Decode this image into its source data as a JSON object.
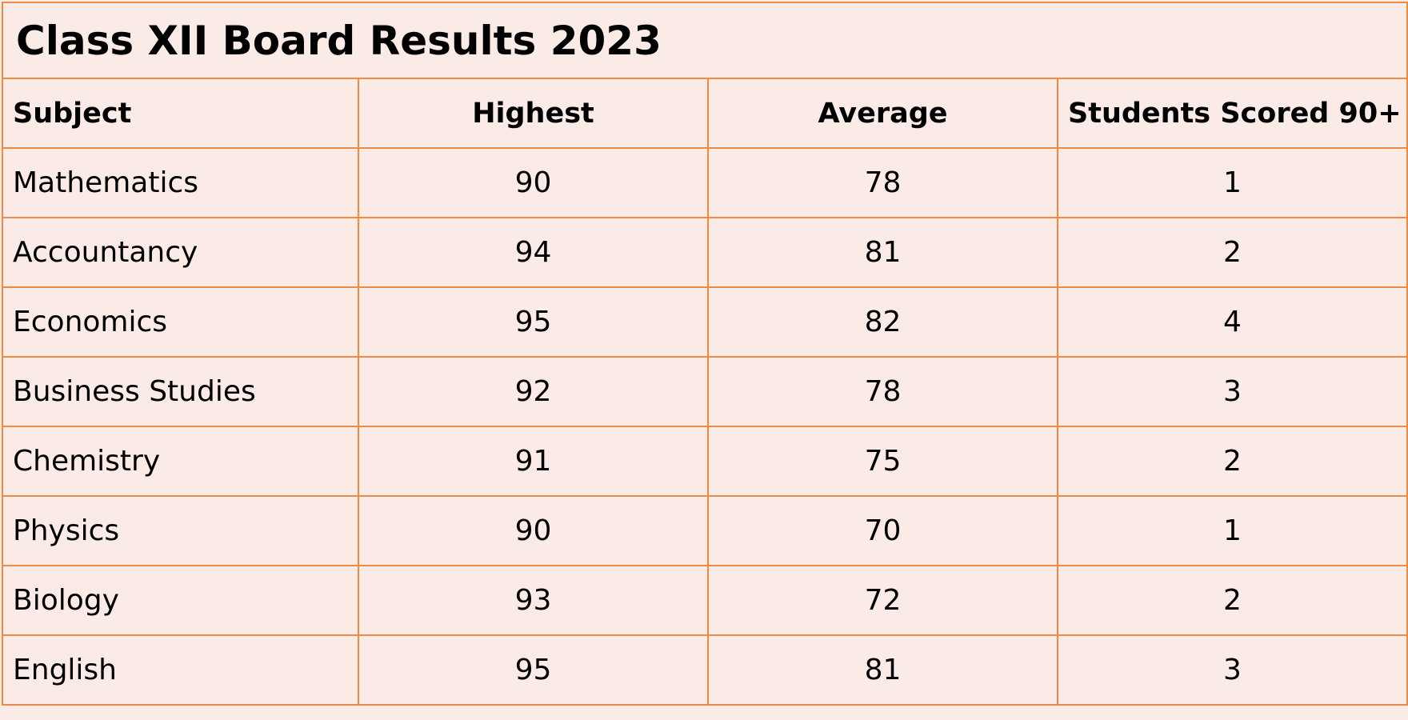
{
  "table": {
    "title": "Class XII Board Results 2023",
    "columns": [
      "Subject",
      "Highest",
      "Average",
      "Students Scored 90+"
    ],
    "rows": [
      [
        "Mathematics",
        90,
        78,
        1
      ],
      [
        "Accountancy",
        94,
        81,
        2
      ],
      [
        "Economics",
        95,
        82,
        4
      ],
      [
        "Business Studies",
        92,
        78,
        3
      ],
      [
        "Chemistry",
        91,
        75,
        2
      ],
      [
        "Physics",
        90,
        70,
        1
      ],
      [
        "Biology",
        93,
        72,
        2
      ],
      [
        "English",
        95,
        81,
        3
      ]
    ]
  }
}
